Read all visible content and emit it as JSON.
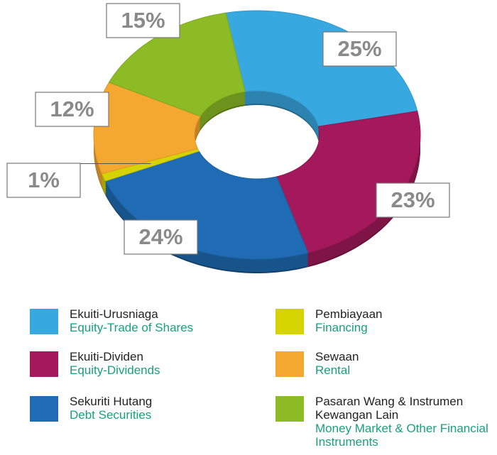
{
  "chart_data": {
    "type": "pie",
    "categories": [
      "Ekuiti-Urusniaga",
      "Ekuiti-Dividen",
      "Sekuriti Hutang",
      "Pembiayaan",
      "Sewaan",
      "Pasaran Wang & Instrumen Kewangan Lain"
    ],
    "categories_en": [
      "Equity-Trade of Shares",
      "Equity-Dividends",
      "Debt Securities",
      "Financing",
      "Rental",
      "Money Market & Other Financial Instruments"
    ],
    "values": [
      25,
      23,
      24,
      1,
      12,
      15
    ],
    "value_labels": [
      "25%",
      "23%",
      "24%",
      "1%",
      "12%",
      "15%"
    ],
    "colors": [
      "#38a8e0",
      "#a3195b",
      "#1f6cb4",
      "#d6d400",
      "#f5a82f",
      "#8cbb25"
    ],
    "donut": true
  }
}
